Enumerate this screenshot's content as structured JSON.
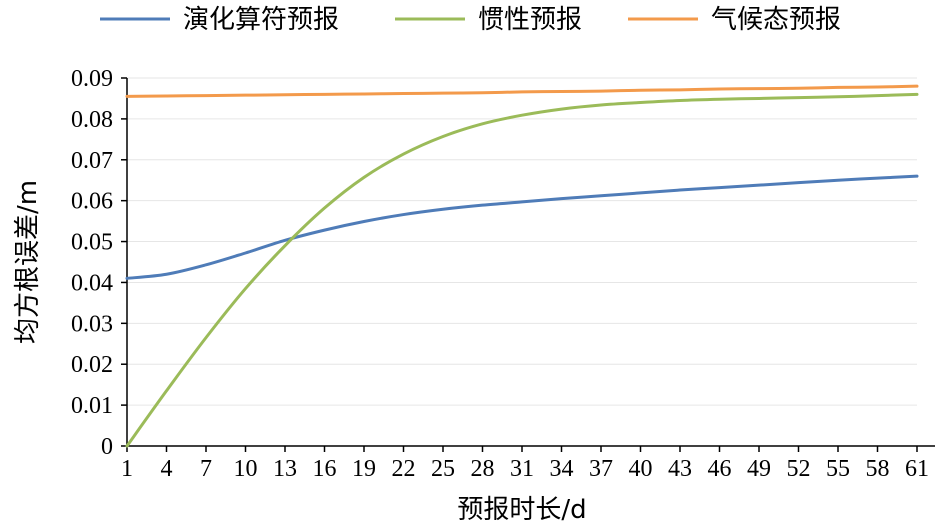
{
  "chart_data": {
    "type": "line",
    "xlabel": "预报时长/d",
    "ylabel": "均方根误差/m",
    "ylim": [
      0,
      0.09
    ],
    "xlim": [
      1,
      61
    ],
    "x_ticks": [
      1,
      4,
      7,
      10,
      13,
      16,
      19,
      22,
      25,
      28,
      31,
      34,
      37,
      40,
      43,
      46,
      49,
      52,
      55,
      58,
      61
    ],
    "y_ticks": [
      0,
      0.01,
      0.02,
      0.03,
      0.04,
      0.05,
      0.06,
      0.07,
      0.08,
      0.09
    ],
    "y_tick_labels": [
      "0",
      "0.01",
      "0.02",
      "0.03",
      "0.04",
      "0.05",
      "0.06",
      "0.07",
      "0.08",
      "0.09"
    ],
    "grid": true,
    "legend_position": "top",
    "series": [
      {
        "name": "演化算符预报",
        "color": "#4f7cb8",
        "x": [
          1,
          4,
          7,
          10,
          13,
          16,
          19,
          22,
          25,
          28,
          31,
          34,
          37,
          40,
          43,
          46,
          49,
          52,
          55,
          58,
          61
        ],
        "values": [
          0.041,
          0.042,
          0.0443,
          0.0472,
          0.0503,
          0.0528,
          0.0549,
          0.0566,
          0.0579,
          0.0589,
          0.0597,
          0.0605,
          0.0612,
          0.0619,
          0.0626,
          0.0632,
          0.0638,
          0.0644,
          0.065,
          0.0655,
          0.066
        ]
      },
      {
        "name": "惯性预报",
        "color": "#9bbb59",
        "x": [
          1,
          4,
          7,
          10,
          13,
          16,
          19,
          22,
          25,
          28,
          31,
          34,
          37,
          40,
          43,
          46,
          49,
          52,
          55,
          58,
          61
        ],
        "values": [
          0.0,
          0.0135,
          0.0265,
          0.0385,
          0.049,
          0.0582,
          0.0657,
          0.0714,
          0.0757,
          0.0788,
          0.0809,
          0.0824,
          0.0834,
          0.084,
          0.0845,
          0.0848,
          0.085,
          0.0852,
          0.0854,
          0.0857,
          0.086
        ]
      },
      {
        "name": "气候态预报",
        "color": "#f39a4b",
        "x": [
          1,
          4,
          7,
          10,
          13,
          16,
          19,
          22,
          25,
          28,
          31,
          34,
          37,
          40,
          43,
          46,
          49,
          52,
          55,
          58,
          61
        ],
        "values": [
          0.0855,
          0.0856,
          0.0857,
          0.0858,
          0.0859,
          0.086,
          0.0861,
          0.0862,
          0.0863,
          0.0864,
          0.0866,
          0.0867,
          0.0868,
          0.087,
          0.0871,
          0.0873,
          0.0874,
          0.0875,
          0.0877,
          0.0878,
          0.088
        ]
      }
    ]
  }
}
